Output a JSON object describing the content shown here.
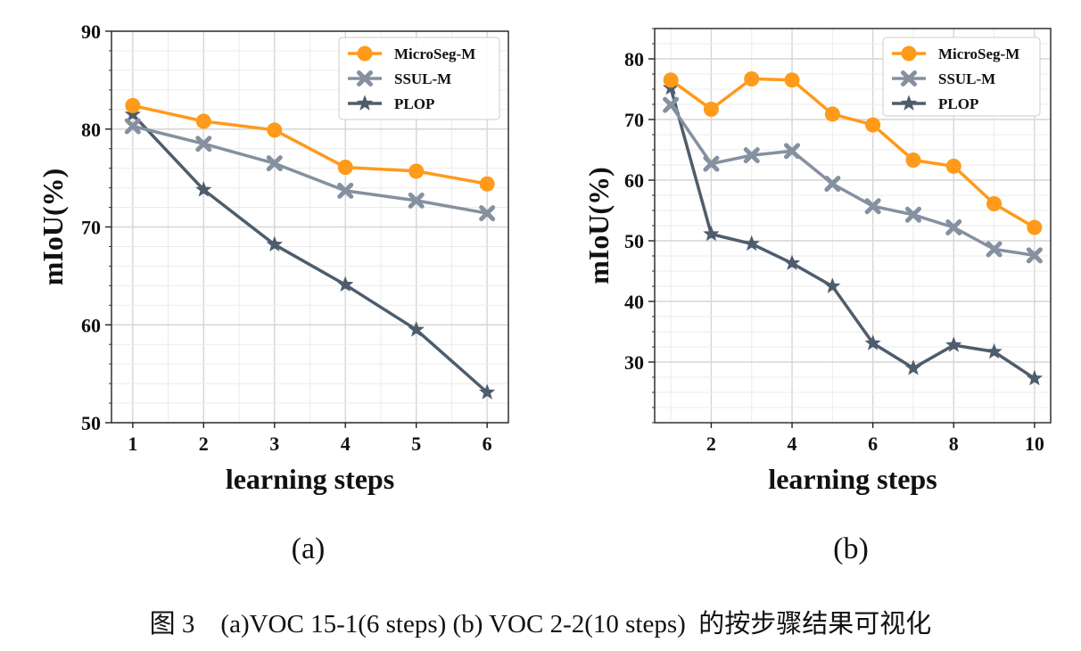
{
  "caption": "图 3    (a)VOC 15-1(6 steps) (b) VOC 2-2(10 steps)  的按步骤结果可视化",
  "colors": {
    "MicroSeg-M": "#ff9a1a",
    "SSUL-M": "#8590a0",
    "PLOP": "#4e5d6c"
  },
  "chart_data": [
    {
      "type": "line",
      "subcaption": "(a)",
      "xlabel": "learning steps",
      "ylabel": "mIoU(%)",
      "xlim": [
        0.7,
        6.3
      ],
      "ylim": [
        50,
        90
      ],
      "xticks": [
        1,
        2,
        3,
        4,
        5,
        6
      ],
      "yticks": [
        50,
        60,
        70,
        80,
        90
      ],
      "grid": true,
      "legend_position": "top-right",
      "x": [
        1,
        2,
        3,
        4,
        5,
        6
      ],
      "series": [
        {
          "name": "MicroSeg-M",
          "marker": "circle",
          "values": [
            82.4,
            80.8,
            79.9,
            76.1,
            75.7,
            74.4
          ]
        },
        {
          "name": "SSUL-M",
          "marker": "x",
          "values": [
            80.3,
            78.5,
            76.5,
            73.7,
            72.7,
            71.4
          ]
        },
        {
          "name": "PLOP",
          "marker": "star",
          "values": [
            81.5,
            73.8,
            68.2,
            64.1,
            59.5,
            53.1
          ]
        }
      ]
    },
    {
      "type": "line",
      "subcaption": "(b)",
      "xlabel": "learning steps",
      "ylabel": "mIoU(%)",
      "xlim": [
        0.6,
        10.4
      ],
      "ylim": [
        20,
        85
      ],
      "xticks": [
        2,
        4,
        6,
        8,
        10
      ],
      "yticks": [
        30,
        40,
        50,
        60,
        70,
        80
      ],
      "grid": true,
      "legend_position": "top-right",
      "x": [
        1,
        2,
        3,
        4,
        5,
        6,
        7,
        8,
        9,
        10
      ],
      "series": [
        {
          "name": "MicroSeg-M",
          "marker": "circle",
          "values": [
            76.5,
            71.7,
            76.7,
            76.5,
            70.9,
            69.1,
            63.3,
            62.3,
            56.1,
            52.2
          ]
        },
        {
          "name": "SSUL-M",
          "marker": "x",
          "values": [
            72.4,
            62.7,
            64.1,
            64.8,
            59.4,
            55.7,
            54.3,
            52.2,
            48.6,
            47.6
          ]
        },
        {
          "name": "PLOP",
          "marker": "star",
          "values": [
            75.2,
            51.1,
            49.5,
            46.3,
            42.5,
            33.1,
            29.0,
            32.8,
            31.7,
            27.3
          ]
        }
      ]
    }
  ]
}
